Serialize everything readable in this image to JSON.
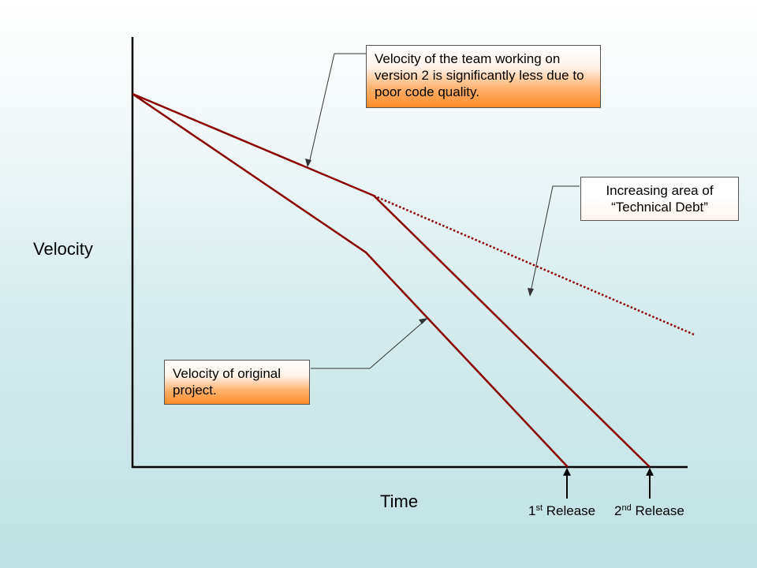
{
  "diagram": {
    "y_axis_label": "Velocity",
    "x_axis_label": "Time",
    "callouts": {
      "version2": "Velocity of the team working on version 2 is significantly less due to poor code quality.",
      "technical_debt": "Increasing area of “Technical Debt”",
      "original": "Velocity of original project."
    },
    "releases": [
      {
        "number": "1",
        "suffix": "st",
        "label": "Release"
      },
      {
        "number": "2",
        "suffix": "nd",
        "label": "Release"
      }
    ],
    "colors": {
      "line": "#8b0000",
      "axis": "#000000",
      "callout_fill": "#ff8c2a",
      "background": "#bfe1e3"
    }
  }
}
